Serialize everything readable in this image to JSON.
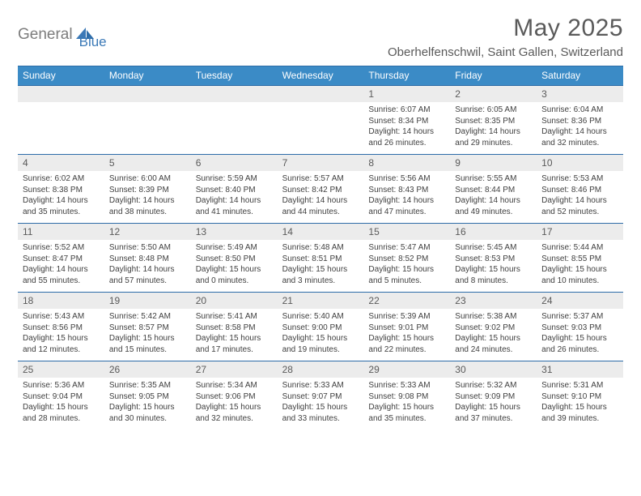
{
  "logo": {
    "word1": "General",
    "word2": "Blue",
    "brand_color": "#3b79b7",
    "grey": "#7d7d7d"
  },
  "title": "May 2025",
  "location": "Oberhelfenschwil, Saint Gallen, Switzerland",
  "colors": {
    "header_bg": "#3b8bc6",
    "header_text": "#ffffff",
    "rule": "#2d6ca8",
    "daynum_bg": "#ececec",
    "daynum_text": "#5a5a5a",
    "body_text": "#3f3f3f",
    "title_text": "#5a5a5a",
    "page_bg": "#ffffff"
  },
  "typography": {
    "title_fontsize": 30,
    "location_fontsize": 15,
    "dow_fontsize": 12,
    "daynum_fontsize": 12,
    "body_fontsize": 10
  },
  "days_of_week": [
    "Sunday",
    "Monday",
    "Tuesday",
    "Wednesday",
    "Thursday",
    "Friday",
    "Saturday"
  ],
  "weeks": [
    [
      null,
      null,
      null,
      null,
      {
        "n": "1",
        "sunrise": "Sunrise: 6:07 AM",
        "sunset": "Sunset: 8:34 PM",
        "daylight": "Daylight: 14 hours and 26 minutes."
      },
      {
        "n": "2",
        "sunrise": "Sunrise: 6:05 AM",
        "sunset": "Sunset: 8:35 PM",
        "daylight": "Daylight: 14 hours and 29 minutes."
      },
      {
        "n": "3",
        "sunrise": "Sunrise: 6:04 AM",
        "sunset": "Sunset: 8:36 PM",
        "daylight": "Daylight: 14 hours and 32 minutes."
      }
    ],
    [
      {
        "n": "4",
        "sunrise": "Sunrise: 6:02 AM",
        "sunset": "Sunset: 8:38 PM",
        "daylight": "Daylight: 14 hours and 35 minutes."
      },
      {
        "n": "5",
        "sunrise": "Sunrise: 6:00 AM",
        "sunset": "Sunset: 8:39 PM",
        "daylight": "Daylight: 14 hours and 38 minutes."
      },
      {
        "n": "6",
        "sunrise": "Sunrise: 5:59 AM",
        "sunset": "Sunset: 8:40 PM",
        "daylight": "Daylight: 14 hours and 41 minutes."
      },
      {
        "n": "7",
        "sunrise": "Sunrise: 5:57 AM",
        "sunset": "Sunset: 8:42 PM",
        "daylight": "Daylight: 14 hours and 44 minutes."
      },
      {
        "n": "8",
        "sunrise": "Sunrise: 5:56 AM",
        "sunset": "Sunset: 8:43 PM",
        "daylight": "Daylight: 14 hours and 47 minutes."
      },
      {
        "n": "9",
        "sunrise": "Sunrise: 5:55 AM",
        "sunset": "Sunset: 8:44 PM",
        "daylight": "Daylight: 14 hours and 49 minutes."
      },
      {
        "n": "10",
        "sunrise": "Sunrise: 5:53 AM",
        "sunset": "Sunset: 8:46 PM",
        "daylight": "Daylight: 14 hours and 52 minutes."
      }
    ],
    [
      {
        "n": "11",
        "sunrise": "Sunrise: 5:52 AM",
        "sunset": "Sunset: 8:47 PM",
        "daylight": "Daylight: 14 hours and 55 minutes."
      },
      {
        "n": "12",
        "sunrise": "Sunrise: 5:50 AM",
        "sunset": "Sunset: 8:48 PM",
        "daylight": "Daylight: 14 hours and 57 minutes."
      },
      {
        "n": "13",
        "sunrise": "Sunrise: 5:49 AM",
        "sunset": "Sunset: 8:50 PM",
        "daylight": "Daylight: 15 hours and 0 minutes."
      },
      {
        "n": "14",
        "sunrise": "Sunrise: 5:48 AM",
        "sunset": "Sunset: 8:51 PM",
        "daylight": "Daylight: 15 hours and 3 minutes."
      },
      {
        "n": "15",
        "sunrise": "Sunrise: 5:47 AM",
        "sunset": "Sunset: 8:52 PM",
        "daylight": "Daylight: 15 hours and 5 minutes."
      },
      {
        "n": "16",
        "sunrise": "Sunrise: 5:45 AM",
        "sunset": "Sunset: 8:53 PM",
        "daylight": "Daylight: 15 hours and 8 minutes."
      },
      {
        "n": "17",
        "sunrise": "Sunrise: 5:44 AM",
        "sunset": "Sunset: 8:55 PM",
        "daylight": "Daylight: 15 hours and 10 minutes."
      }
    ],
    [
      {
        "n": "18",
        "sunrise": "Sunrise: 5:43 AM",
        "sunset": "Sunset: 8:56 PM",
        "daylight": "Daylight: 15 hours and 12 minutes."
      },
      {
        "n": "19",
        "sunrise": "Sunrise: 5:42 AM",
        "sunset": "Sunset: 8:57 PM",
        "daylight": "Daylight: 15 hours and 15 minutes."
      },
      {
        "n": "20",
        "sunrise": "Sunrise: 5:41 AM",
        "sunset": "Sunset: 8:58 PM",
        "daylight": "Daylight: 15 hours and 17 minutes."
      },
      {
        "n": "21",
        "sunrise": "Sunrise: 5:40 AM",
        "sunset": "Sunset: 9:00 PM",
        "daylight": "Daylight: 15 hours and 19 minutes."
      },
      {
        "n": "22",
        "sunrise": "Sunrise: 5:39 AM",
        "sunset": "Sunset: 9:01 PM",
        "daylight": "Daylight: 15 hours and 22 minutes."
      },
      {
        "n": "23",
        "sunrise": "Sunrise: 5:38 AM",
        "sunset": "Sunset: 9:02 PM",
        "daylight": "Daylight: 15 hours and 24 minutes."
      },
      {
        "n": "24",
        "sunrise": "Sunrise: 5:37 AM",
        "sunset": "Sunset: 9:03 PM",
        "daylight": "Daylight: 15 hours and 26 minutes."
      }
    ],
    [
      {
        "n": "25",
        "sunrise": "Sunrise: 5:36 AM",
        "sunset": "Sunset: 9:04 PM",
        "daylight": "Daylight: 15 hours and 28 minutes."
      },
      {
        "n": "26",
        "sunrise": "Sunrise: 5:35 AM",
        "sunset": "Sunset: 9:05 PM",
        "daylight": "Daylight: 15 hours and 30 minutes."
      },
      {
        "n": "27",
        "sunrise": "Sunrise: 5:34 AM",
        "sunset": "Sunset: 9:06 PM",
        "daylight": "Daylight: 15 hours and 32 minutes."
      },
      {
        "n": "28",
        "sunrise": "Sunrise: 5:33 AM",
        "sunset": "Sunset: 9:07 PM",
        "daylight": "Daylight: 15 hours and 33 minutes."
      },
      {
        "n": "29",
        "sunrise": "Sunrise: 5:33 AM",
        "sunset": "Sunset: 9:08 PM",
        "daylight": "Daylight: 15 hours and 35 minutes."
      },
      {
        "n": "30",
        "sunrise": "Sunrise: 5:32 AM",
        "sunset": "Sunset: 9:09 PM",
        "daylight": "Daylight: 15 hours and 37 minutes."
      },
      {
        "n": "31",
        "sunrise": "Sunrise: 5:31 AM",
        "sunset": "Sunset: 9:10 PM",
        "daylight": "Daylight: 15 hours and 39 minutes."
      }
    ]
  ]
}
